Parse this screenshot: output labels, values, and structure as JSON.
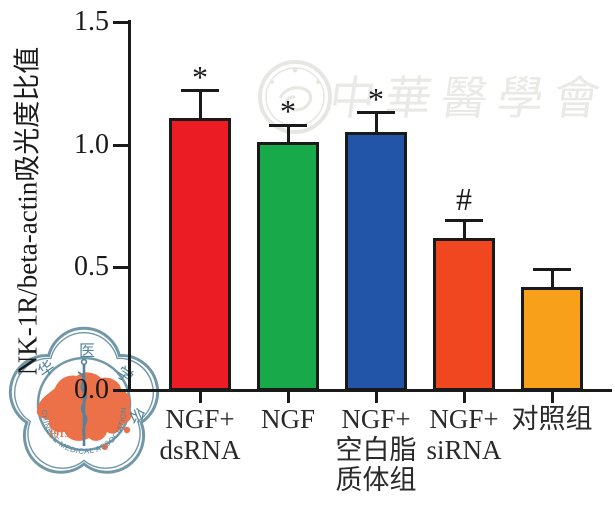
{
  "watermarks": {
    "calligraphy_text": "中華醫學會",
    "emblem": {
      "name": "chinese-medical-association-seal",
      "year": "1915",
      "arc_text": "CHINESE MEDICAL ASSOCIATION",
      "cn_chars": [
        "华",
        "医",
        "学",
        "会"
      ],
      "blossom_color": "#6b93a4",
      "map_color": "#ec6a40",
      "year_color": "#e4643c"
    }
  },
  "chart_data": {
    "type": "bar",
    "title": "",
    "xlabel": "",
    "ylabel": "NK-1R/beta-actin吸光度比值",
    "ylim": [
      0,
      1.5
    ],
    "yticks": [
      0,
      0.5,
      1.0,
      1.5
    ],
    "ytick_labels": [
      "0.0",
      "0.5",
      "1.0",
      "1.5"
    ],
    "categories": [
      "NGF+\ndsRNA",
      "NGF",
      "NGF+\n空白脂\n质体组",
      "NGF+\nsiRNA",
      "对照组"
    ],
    "values": [
      1.11,
      1.01,
      1.05,
      0.62,
      0.42
    ],
    "errors": [
      0.11,
      0.07,
      0.08,
      0.07,
      0.07
    ],
    "annotations": [
      "*",
      "*",
      "*",
      "#",
      ""
    ],
    "bar_colors": [
      "#ec1c24",
      "#18a94b",
      "#2255a8",
      "#f04721",
      "#f9a01b"
    ],
    "axis_color": "#1a1a1a",
    "grid": false,
    "legend": null
  }
}
